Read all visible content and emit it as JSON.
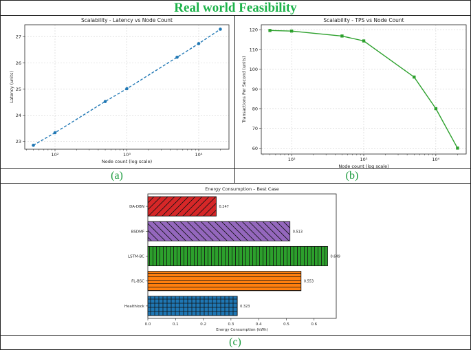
{
  "page": {
    "title": "Real world Feasibility",
    "captions": [
      "(a)",
      "(b)",
      "(c)"
    ]
  },
  "chart_data": [
    {
      "type": "line",
      "title": "Scalability - Latency vs Node Count",
      "xlabel": "Node count (log scale)",
      "ylabel": "Latency (units)",
      "xscale": "log",
      "x": [
        50,
        100,
        500,
        1000,
        5000,
        10000,
        20000
      ],
      "series": [
        {
          "values": [
            22.85,
            23.33,
            24.52,
            25.01,
            26.21,
            26.73,
            27.28
          ],
          "color": "#1f77b4",
          "linestyle": "dashed",
          "marker": "circle"
        }
      ],
      "xticks": [
        "10²",
        "10³",
        "10⁴"
      ],
      "yticks": [
        "23",
        "24",
        "25",
        "26",
        "27"
      ],
      "ylim": [
        22.7,
        27.45
      ],
      "grid": true
    },
    {
      "type": "line",
      "title": "Scalability - TPS vs Node Count",
      "xlabel": "Node count (log scale)",
      "ylabel": "Transactions Per Second (units)",
      "xscale": "log",
      "x": [
        50,
        100,
        500,
        1000,
        5000,
        10000,
        20000
      ],
      "series": [
        {
          "values": [
            119.6,
            119.3,
            116.8,
            114.3,
            96,
            80,
            60
          ],
          "color": "#2ca02c",
          "linestyle": "solid",
          "marker": "square"
        }
      ],
      "xticks": [
        "10²",
        "10³",
        "10⁴"
      ],
      "yticks": [
        "60",
        "70",
        "80",
        "90",
        "100",
        "110",
        "120"
      ],
      "ylim": [
        57,
        122.5
      ],
      "grid": true
    },
    {
      "type": "bar",
      "orientation": "horizontal",
      "title": "Energy Consumption – Best Case",
      "xlabel": "Energy Consumption (kWh)",
      "categories": [
        "DA-DBN",
        "BSDMF",
        "LSTM-BC",
        "FL-BSC",
        "Healthlock"
      ],
      "values": [
        0.247,
        0.513,
        0.649,
        0.553,
        0.323
      ],
      "value_labels": [
        "0.247",
        "0.513",
        "0.649",
        "0.553",
        "0.323"
      ],
      "colors": [
        "#d62728",
        "#9467bd",
        "#2ca02c",
        "#ff7f0e",
        "#1f77b4"
      ],
      "hatches": [
        "/",
        "\\",
        "|",
        "-",
        "+"
      ],
      "xticks": [
        "0.0",
        "0.1",
        "0.2",
        "0.3",
        "0.4",
        "0.5",
        "0.6"
      ],
      "xlim": [
        0,
        0.68
      ]
    }
  ]
}
